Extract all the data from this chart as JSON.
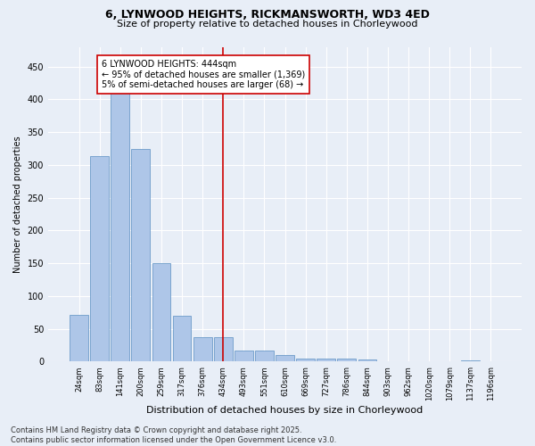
{
  "title1": "6, LYNWOOD HEIGHTS, RICKMANSWORTH, WD3 4ED",
  "title2": "Size of property relative to detached houses in Chorleywood",
  "xlabel": "Distribution of detached houses by size in Chorleywood",
  "ylabel": "Number of detached properties",
  "bar_labels": [
    "24sqm",
    "83sqm",
    "141sqm",
    "200sqm",
    "259sqm",
    "317sqm",
    "376sqm",
    "434sqm",
    "493sqm",
    "551sqm",
    "610sqm",
    "669sqm",
    "727sqm",
    "786sqm",
    "844sqm",
    "903sqm",
    "962sqm",
    "1020sqm",
    "1079sqm",
    "1137sqm",
    "1196sqm"
  ],
  "bar_values": [
    72,
    314,
    410,
    324,
    150,
    70,
    37,
    37,
    17,
    17,
    10,
    5,
    5,
    5,
    3,
    0,
    0,
    0,
    0,
    2,
    0
  ],
  "bar_color": "#aec6e8",
  "bar_edge_color": "#5a8fc2",
  "vline_x": 7.0,
  "vline_color": "#cc0000",
  "annotation_text": "6 LYNWOOD HEIGHTS: 444sqm\n← 95% of detached houses are smaller (1,369)\n5% of semi-detached houses are larger (68) →",
  "annotation_box_color": "#ffffff",
  "annotation_box_edge_color": "#cc0000",
  "ylim": [
    0,
    480
  ],
  "yticks": [
    0,
    50,
    100,
    150,
    200,
    250,
    300,
    350,
    400,
    450
  ],
  "background_color": "#e8eef7",
  "footer_text": "Contains HM Land Registry data © Crown copyright and database right 2025.\nContains public sector information licensed under the Open Government Licence v3.0.",
  "title1_fontsize": 9,
  "title2_fontsize": 8,
  "annotation_fontsize": 7,
  "footer_fontsize": 6,
  "ylabel_fontsize": 7,
  "xlabel_fontsize": 8,
  "ytick_fontsize": 7,
  "xtick_fontsize": 6
}
